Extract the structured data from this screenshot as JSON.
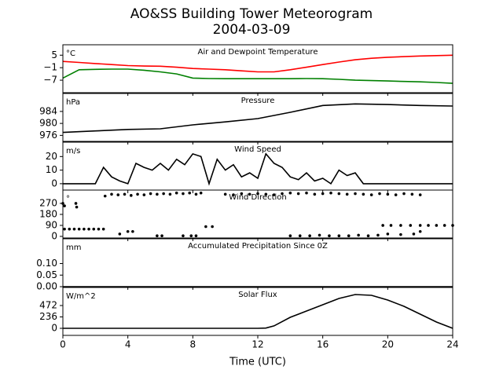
{
  "title": "AO&SS Building Tower Meteorogram",
  "subtitle": "2004-03-09",
  "chart_data": [
    {
      "type": "line",
      "title": "Air and Dewpoint Temperature",
      "ylabel": "°C",
      "xlim": [
        0,
        24
      ],
      "x": [
        0,
        1,
        2,
        3,
        4,
        5,
        6,
        7,
        8,
        9,
        10,
        11,
        12,
        13,
        14,
        15,
        16,
        17,
        18,
        19,
        20,
        21,
        22,
        23,
        24
      ],
      "series": [
        {
          "color": "#ff0000",
          "values": [
            2,
            1.5,
            1,
            0.5,
            0,
            -0.2,
            -0.3,
            -0.8,
            -1.4,
            -1.7,
            -2,
            -2.5,
            -3,
            -3,
            -2,
            -0.8,
            0.5,
            1.7,
            2.8,
            3.5,
            4,
            4.3,
            4.6,
            4.8,
            5
          ]
        },
        {
          "color": "#008000",
          "values": [
            -6,
            -2,
            -1.8,
            -1.7,
            -1.7,
            -2.2,
            -3,
            -4,
            -6,
            -6.2,
            -6.3,
            -6.3,
            -6.3,
            -6.3,
            -6.3,
            -6.2,
            -6.3,
            -6.6,
            -7,
            -7.2,
            -7.4,
            -7.6,
            -7.8,
            -8.1,
            -8.5
          ]
        }
      ],
      "ylim": [
        -13,
        10
      ],
      "yticks": [
        {
          "value": 5,
          "label": "5"
        },
        {
          "value": -1,
          "label": "−1"
        },
        {
          "value": -7,
          "label": "−7"
        }
      ]
    },
    {
      "type": "line",
      "title": "Pressure",
      "ylabel": "hPa",
      "xlim": [
        0,
        24
      ],
      "x": [
        0,
        2,
        4,
        6,
        8,
        10,
        12,
        14,
        16,
        18,
        20,
        22,
        24
      ],
      "series": [
        {
          "color": "#000000",
          "values": [
            977,
            977.5,
            978,
            978.2,
            979.5,
            980.5,
            981.6,
            983.7,
            986,
            986.5,
            986.3,
            986,
            985.8
          ]
        }
      ],
      "ylim": [
        974,
        990
      ],
      "yticks": [
        984,
        980,
        976
      ]
    },
    {
      "type": "line",
      "title": "Wind Speed",
      "ylabel": "m/s",
      "xlim": [
        0,
        24
      ],
      "x": [
        0,
        0.5,
        1,
        1.5,
        2,
        2.5,
        3,
        3.5,
        4,
        4.5,
        5,
        5.5,
        6,
        6.5,
        7,
        7.5,
        8,
        8.5,
        9,
        9.5,
        10,
        10.5,
        11,
        11.5,
        12,
        12.5,
        13,
        13.5,
        14,
        14.5,
        15,
        15.5,
        16,
        16.5,
        17,
        17.5,
        18,
        18.5,
        19,
        19.5,
        20,
        20.5,
        21,
        21.5,
        22,
        22.5,
        23,
        23.5,
        24
      ],
      "series": [
        {
          "color": "#000000",
          "values": [
            0,
            0,
            0,
            0,
            0,
            12,
            5,
            2,
            0,
            15,
            12,
            10,
            15,
            10,
            18,
            14,
            22,
            20,
            0,
            18,
            10,
            14,
            5,
            8,
            4,
            22,
            15,
            12,
            5,
            3,
            8,
            2,
            4,
            0,
            10,
            6,
            8,
            0,
            0,
            0,
            0,
            0,
            0,
            0,
            0,
            0,
            0,
            0,
            0
          ]
        }
      ],
      "ylim": [
        -4.7,
        30.6
      ],
      "yticks": [
        20,
        10,
        0
      ]
    },
    {
      "type": "scatter",
      "title": "Wind Direction",
      "ylabel": "°",
      "xlim": [
        0,
        24
      ],
      "x": [
        0,
        0.1,
        0.8,
        0.85,
        0.1,
        0.4,
        0.7,
        1.0,
        1.3,
        1.6,
        1.9,
        2.2,
        2.5,
        2.6,
        3.0,
        3.4,
        3.8,
        4.2,
        4.6,
        5.0,
        5.4,
        5.8,
        6.2,
        6.6,
        7.0,
        7.4,
        7.8,
        8.2,
        8.5,
        3.5,
        4.0,
        4.3,
        5.8,
        6.1,
        7.4,
        7.9,
        8.2,
        8.8,
        9.2,
        10.0,
        10.5,
        11.0,
        11.5,
        12.0,
        12.5,
        13.0,
        13.5,
        14.0,
        14.5,
        15.0,
        15.5,
        16.0,
        16.5,
        17.0,
        17.5,
        18.0,
        18.5,
        19.0,
        19.5,
        20.0,
        20.5,
        21.0,
        21.5,
        22.0,
        14.0,
        14.6,
        15.2,
        15.8,
        16.4,
        17.0,
        17.6,
        18.2,
        18.8,
        19.4,
        19.7,
        20.2,
        20.8,
        21.4,
        22.0,
        22.5,
        23.0,
        23.5,
        24.0,
        20.0,
        20.8,
        21.6,
        22.0
      ],
      "series": [
        {
          "color": "#000000",
          "values": [
            270,
            250,
            270,
            240,
            60,
            60,
            60,
            60,
            60,
            60,
            60,
            60,
            60,
            330,
            345,
            340,
            345,
            335,
            345,
            340,
            350,
            345,
            350,
            345,
            355,
            350,
            355,
            345,
            355,
            20,
            40,
            40,
            5,
            5,
            5,
            5,
            5,
            80,
            80,
            345,
            340,
            350,
            345,
            350,
            345,
            340,
            350,
            355,
            350,
            355,
            345,
            350,
            355,
            350,
            345,
            350,
            345,
            340,
            350,
            345,
            340,
            350,
            345,
            340,
            5,
            5,
            5,
            10,
            5,
            5,
            5,
            10,
            5,
            10,
            90,
            90,
            90,
            90,
            90,
            90,
            90,
            90,
            90,
            20,
            15,
            20,
            40
          ]
        }
      ],
      "ylim": [
        -13,
        379
      ],
      "yticks": [
        270,
        180,
        90,
        0
      ]
    },
    {
      "type": "line",
      "title": "Accumulated Precipitation Since 0Z",
      "ylabel": "mm",
      "xlim": [
        0,
        24
      ],
      "x": [
        0,
        24
      ],
      "series": [
        {
          "color": "#000000",
          "values": [
            0,
            0
          ]
        }
      ],
      "ylim": [
        0,
        0.207
      ],
      "yticks": [
        {
          "value": 0.1,
          "label": "0.10"
        },
        {
          "value": 0.05,
          "label": "0.05"
        },
        {
          "value": 0,
          "label": "0.00"
        }
      ]
    },
    {
      "type": "line",
      "title": "Solar Flux",
      "ylabel": "W/m^2",
      "xlabel": "Time (UTC)",
      "xlim": [
        0,
        24
      ],
      "xticks": [
        0,
        4,
        8,
        12,
        16,
        20,
        24
      ],
      "x": [
        0,
        4,
        8,
        12,
        12.5,
        13,
        14,
        15,
        16,
        17,
        18,
        19,
        20,
        21,
        22,
        23,
        24
      ],
      "series": [
        {
          "color": "#000000",
          "values": [
            0,
            0,
            0,
            0,
            5,
            50,
            228,
            358,
            488,
            618,
            700,
            684,
            586,
            456,
            293,
            130,
            0
          ]
        }
      ],
      "ylim": [
        -146,
        846
      ],
      "yticks": [
        472,
        236,
        0
      ]
    }
  ]
}
